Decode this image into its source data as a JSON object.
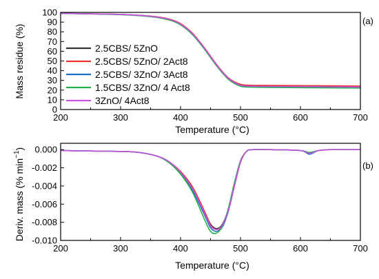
{
  "chart_data": [
    {
      "panel_label": "(a)",
      "type": "line",
      "xlabel_main": "Temperature (",
      "xlabel_unit": "°C)",
      "ylabel": "Mass residue (%)",
      "xlim": [
        200,
        700
      ],
      "ylim": [
        0,
        100
      ],
      "xticks": [
        "200",
        "300",
        "400",
        "500",
        "600",
        "700"
      ],
      "yticks": [
        "0",
        "10",
        "20",
        "30",
        "40",
        "50",
        "60",
        "70",
        "80",
        "90",
        "100"
      ],
      "legend": "left",
      "x": [
        200,
        250,
        300,
        350,
        380,
        400,
        420,
        440,
        460,
        480,
        500,
        520,
        550,
        600,
        650,
        700
      ],
      "series": [
        {
          "name": "2.5CBS/ 5ZnO",
          "color": "#333333",
          "values": [
            99,
            98.5,
            97.8,
            96,
            93,
            88,
            78,
            63,
            46,
            32,
            25.5,
            24.5,
            24.3,
            24,
            23.7,
            23.5
          ]
        },
        {
          "name": "2.5CBS/ 5ZnO/ 2Act8",
          "color": "#e8322d",
          "values": [
            99,
            98.6,
            98,
            96.2,
            93.3,
            88.5,
            78.5,
            63.5,
            46.5,
            32.5,
            26,
            25,
            24.8,
            24.6,
            24.4,
            24.2
          ]
        },
        {
          "name": "2.5CBS/ 3ZnO/ 3Act8",
          "color": "#1f6fc5",
          "values": [
            99,
            98.5,
            97.8,
            95.9,
            92.8,
            87.8,
            77.5,
            62.5,
            45.5,
            31.5,
            24.5,
            23.5,
            23.2,
            23,
            22.8,
            22.6
          ]
        },
        {
          "name": "1.5CBS/ 3ZnO/ 4 Act8",
          "color": "#22b24c",
          "values": [
            99,
            98.4,
            97.6,
            95.6,
            92.3,
            87.2,
            77,
            62,
            45,
            31,
            24,
            23,
            22.7,
            22.5,
            22.3,
            22.1
          ]
        },
        {
          "name": "3ZnO/ 4Act8",
          "color": "#c455e0",
          "values": [
            99,
            98.5,
            97.9,
            96,
            93,
            88,
            78,
            63,
            46,
            32,
            25,
            24,
            23.8,
            23.6,
            23.4,
            23.2
          ]
        }
      ]
    },
    {
      "panel_label": "(b)",
      "type": "line",
      "xlabel_main": "Temperature (",
      "xlabel_unit": "°C)",
      "ylabel_main": "Deriv. mass (% min",
      "ylabel_sup": "−1",
      "ylabel_end": ")",
      "xlim": [
        200,
        700
      ],
      "ylim": [
        -0.01,
        0.0007
      ],
      "xticks": [
        "200",
        "300",
        "400",
        "500",
        "600",
        "700"
      ],
      "yticks": [
        "0.000",
        "-0.002",
        "-0.004",
        "-0.006",
        "-0.008",
        "-0.010"
      ],
      "x": [
        200,
        250,
        300,
        330,
        360,
        380,
        400,
        420,
        440,
        450,
        460,
        470,
        480,
        490,
        500,
        510,
        520,
        550,
        600,
        615,
        630,
        650,
        700
      ],
      "series": [
        {
          "name": "2.5CBS/ 5ZnO",
          "color": "#333333",
          "values": [
            -0.0001,
            -0.00015,
            -0.0002,
            -0.0003,
            -0.0007,
            -0.0013,
            -0.0025,
            -0.0042,
            -0.0068,
            -0.0082,
            -0.0087,
            -0.0082,
            -0.0065,
            -0.0038,
            -0.0013,
            -0.0002,
            0,
            0,
            -0.0001,
            -0.0004,
            -0.0001,
            0,
            0
          ]
        },
        {
          "name": "2.5CBS/ 5ZnO/ 2Act8",
          "color": "#e8322d",
          "values": [
            -0.0001,
            -0.00015,
            -0.0002,
            -0.0003,
            -0.0007,
            -0.0013,
            -0.0024,
            -0.0041,
            -0.0068,
            -0.0083,
            -0.0088,
            -0.0084,
            -0.0067,
            -0.004,
            -0.0014,
            -0.0002,
            0,
            0,
            -0.0001,
            -0.0004,
            -0.0001,
            0,
            0
          ]
        },
        {
          "name": "2.5CBS/ 3ZnO/ 3Act8",
          "color": "#1f6fc5",
          "values": [
            -0.0001,
            -0.00015,
            -0.0002,
            -0.0003,
            -0.0007,
            -0.0013,
            -0.0026,
            -0.0045,
            -0.0072,
            -0.0086,
            -0.009,
            -0.0085,
            -0.0067,
            -0.0039,
            -0.0013,
            -0.0002,
            0,
            0,
            -0.0001,
            -0.0005,
            -0.0001,
            0,
            0
          ]
        },
        {
          "name": "1.5CBS/ 3ZnO/ 4 Act8",
          "color": "#22b24c",
          "values": [
            -0.0001,
            -0.00015,
            -0.0002,
            -0.0003,
            -0.0007,
            -0.0014,
            -0.0027,
            -0.0047,
            -0.0077,
            -0.009,
            -0.0092,
            -0.0084,
            -0.0064,
            -0.0036,
            -0.0012,
            -0.0002,
            0,
            0,
            -0.0001,
            -0.0003,
            -0.0001,
            0,
            0
          ]
        },
        {
          "name": "3ZnO/ 4Act8",
          "color": "#c455e0",
          "values": [
            -0.0001,
            -0.00015,
            -0.0002,
            -0.0003,
            -0.0007,
            -0.0013,
            -0.0025,
            -0.0043,
            -0.007,
            -0.0084,
            -0.0088,
            -0.0083,
            -0.0066,
            -0.0039,
            -0.0013,
            -0.0002,
            0,
            0,
            -0.0001,
            -0.0004,
            -0.0001,
            0,
            0
          ]
        }
      ]
    }
  ]
}
